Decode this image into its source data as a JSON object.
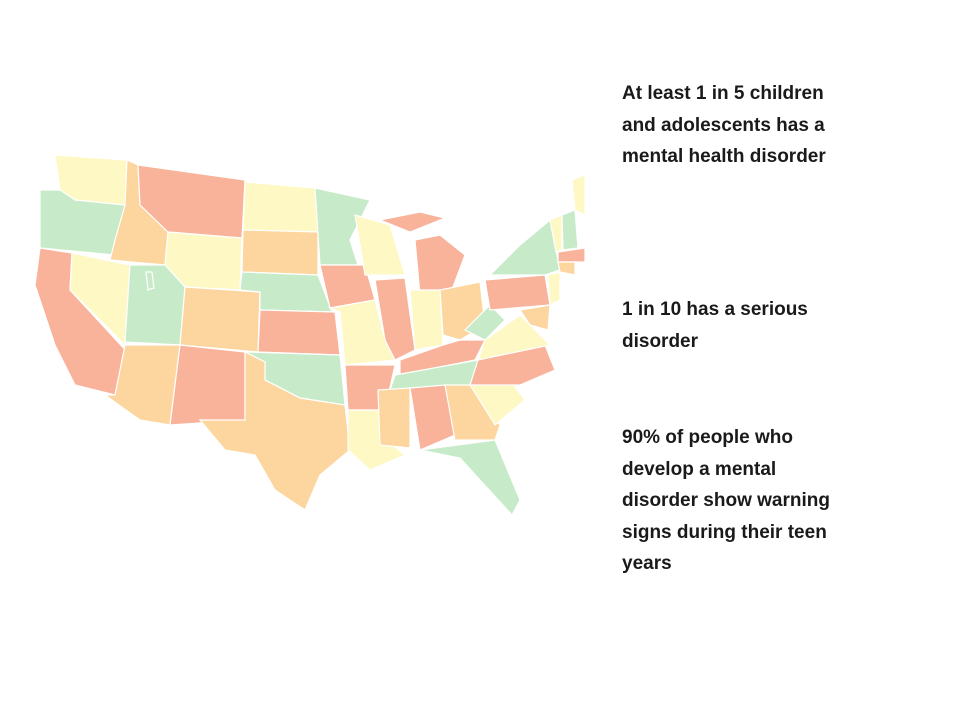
{
  "statements": [
    {
      "lines": [
        "At least 1 in 5 children",
        "and adolescents has a",
        "mental health disorder"
      ]
    },
    {
      "lines": [
        "1 in 10 has a serious",
        "disorder"
      ]
    },
    {
      "lines": [
        "90% of people who",
        "develop a mental",
        "disorder show warning",
        "signs during their teen",
        "years"
      ]
    }
  ]
}
